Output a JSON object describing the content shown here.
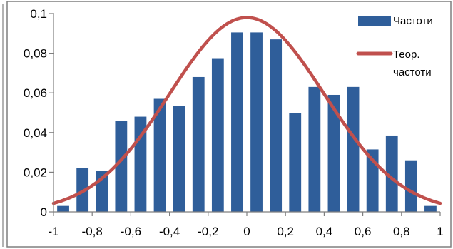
{
  "chart_data": {
    "type": "bar",
    "x": [
      -1.0,
      -0.9,
      -0.8,
      -0.7,
      -0.6,
      -0.5,
      -0.4,
      -0.3,
      -0.2,
      -0.1,
      0.0,
      0.1,
      0.2,
      0.3,
      0.4,
      0.5,
      0.6,
      0.7,
      0.8,
      0.9
    ],
    "series": [
      {
        "name": "Частоти",
        "kind": "bar",
        "color": "#2F5E9A",
        "values": [
          0.003,
          0.022,
          0.0205,
          0.046,
          0.048,
          0.057,
          0.0535,
          0.068,
          0.0775,
          0.0905,
          0.0905,
          0.087,
          0.05,
          0.063,
          0.059,
          0.063,
          0.0315,
          0.0385,
          0.026,
          0.003
        ]
      },
      {
        "name": "Теор. частоти",
        "kind": "line",
        "color": "#C0504D",
        "curve": {
          "shape": "normal",
          "mean": 0.0,
          "stdev": 0.4,
          "peak": 0.098
        }
      }
    ],
    "title": "",
    "xlabel": "",
    "ylabel": "",
    "xlim": [
      -1,
      1
    ],
    "ylim": [
      0,
      0.1
    ],
    "xticks": [
      -1,
      -0.8,
      -0.6,
      -0.4,
      -0.2,
      0,
      0.2,
      0.4,
      0.6,
      0.8,
      1
    ],
    "xtick_labels": [
      "-1",
      "-0,8",
      "-0,6",
      "-0,4",
      "-0,2",
      "0",
      "0,2",
      "0,4",
      "0,6",
      "0,8",
      "1"
    ],
    "yticks": [
      0,
      0.02,
      0.04,
      0.06,
      0.08,
      0.1
    ],
    "ytick_labels": [
      "0",
      "0,02",
      "0,04",
      "0,06",
      "0,08",
      "0,1"
    ],
    "grid": false,
    "legend": {
      "placement": "top-right",
      "entries": [
        {
          "label": "Частоти"
        },
        {
          "label_lines": [
            "Теор.",
            "частоти"
          ]
        }
      ]
    }
  }
}
